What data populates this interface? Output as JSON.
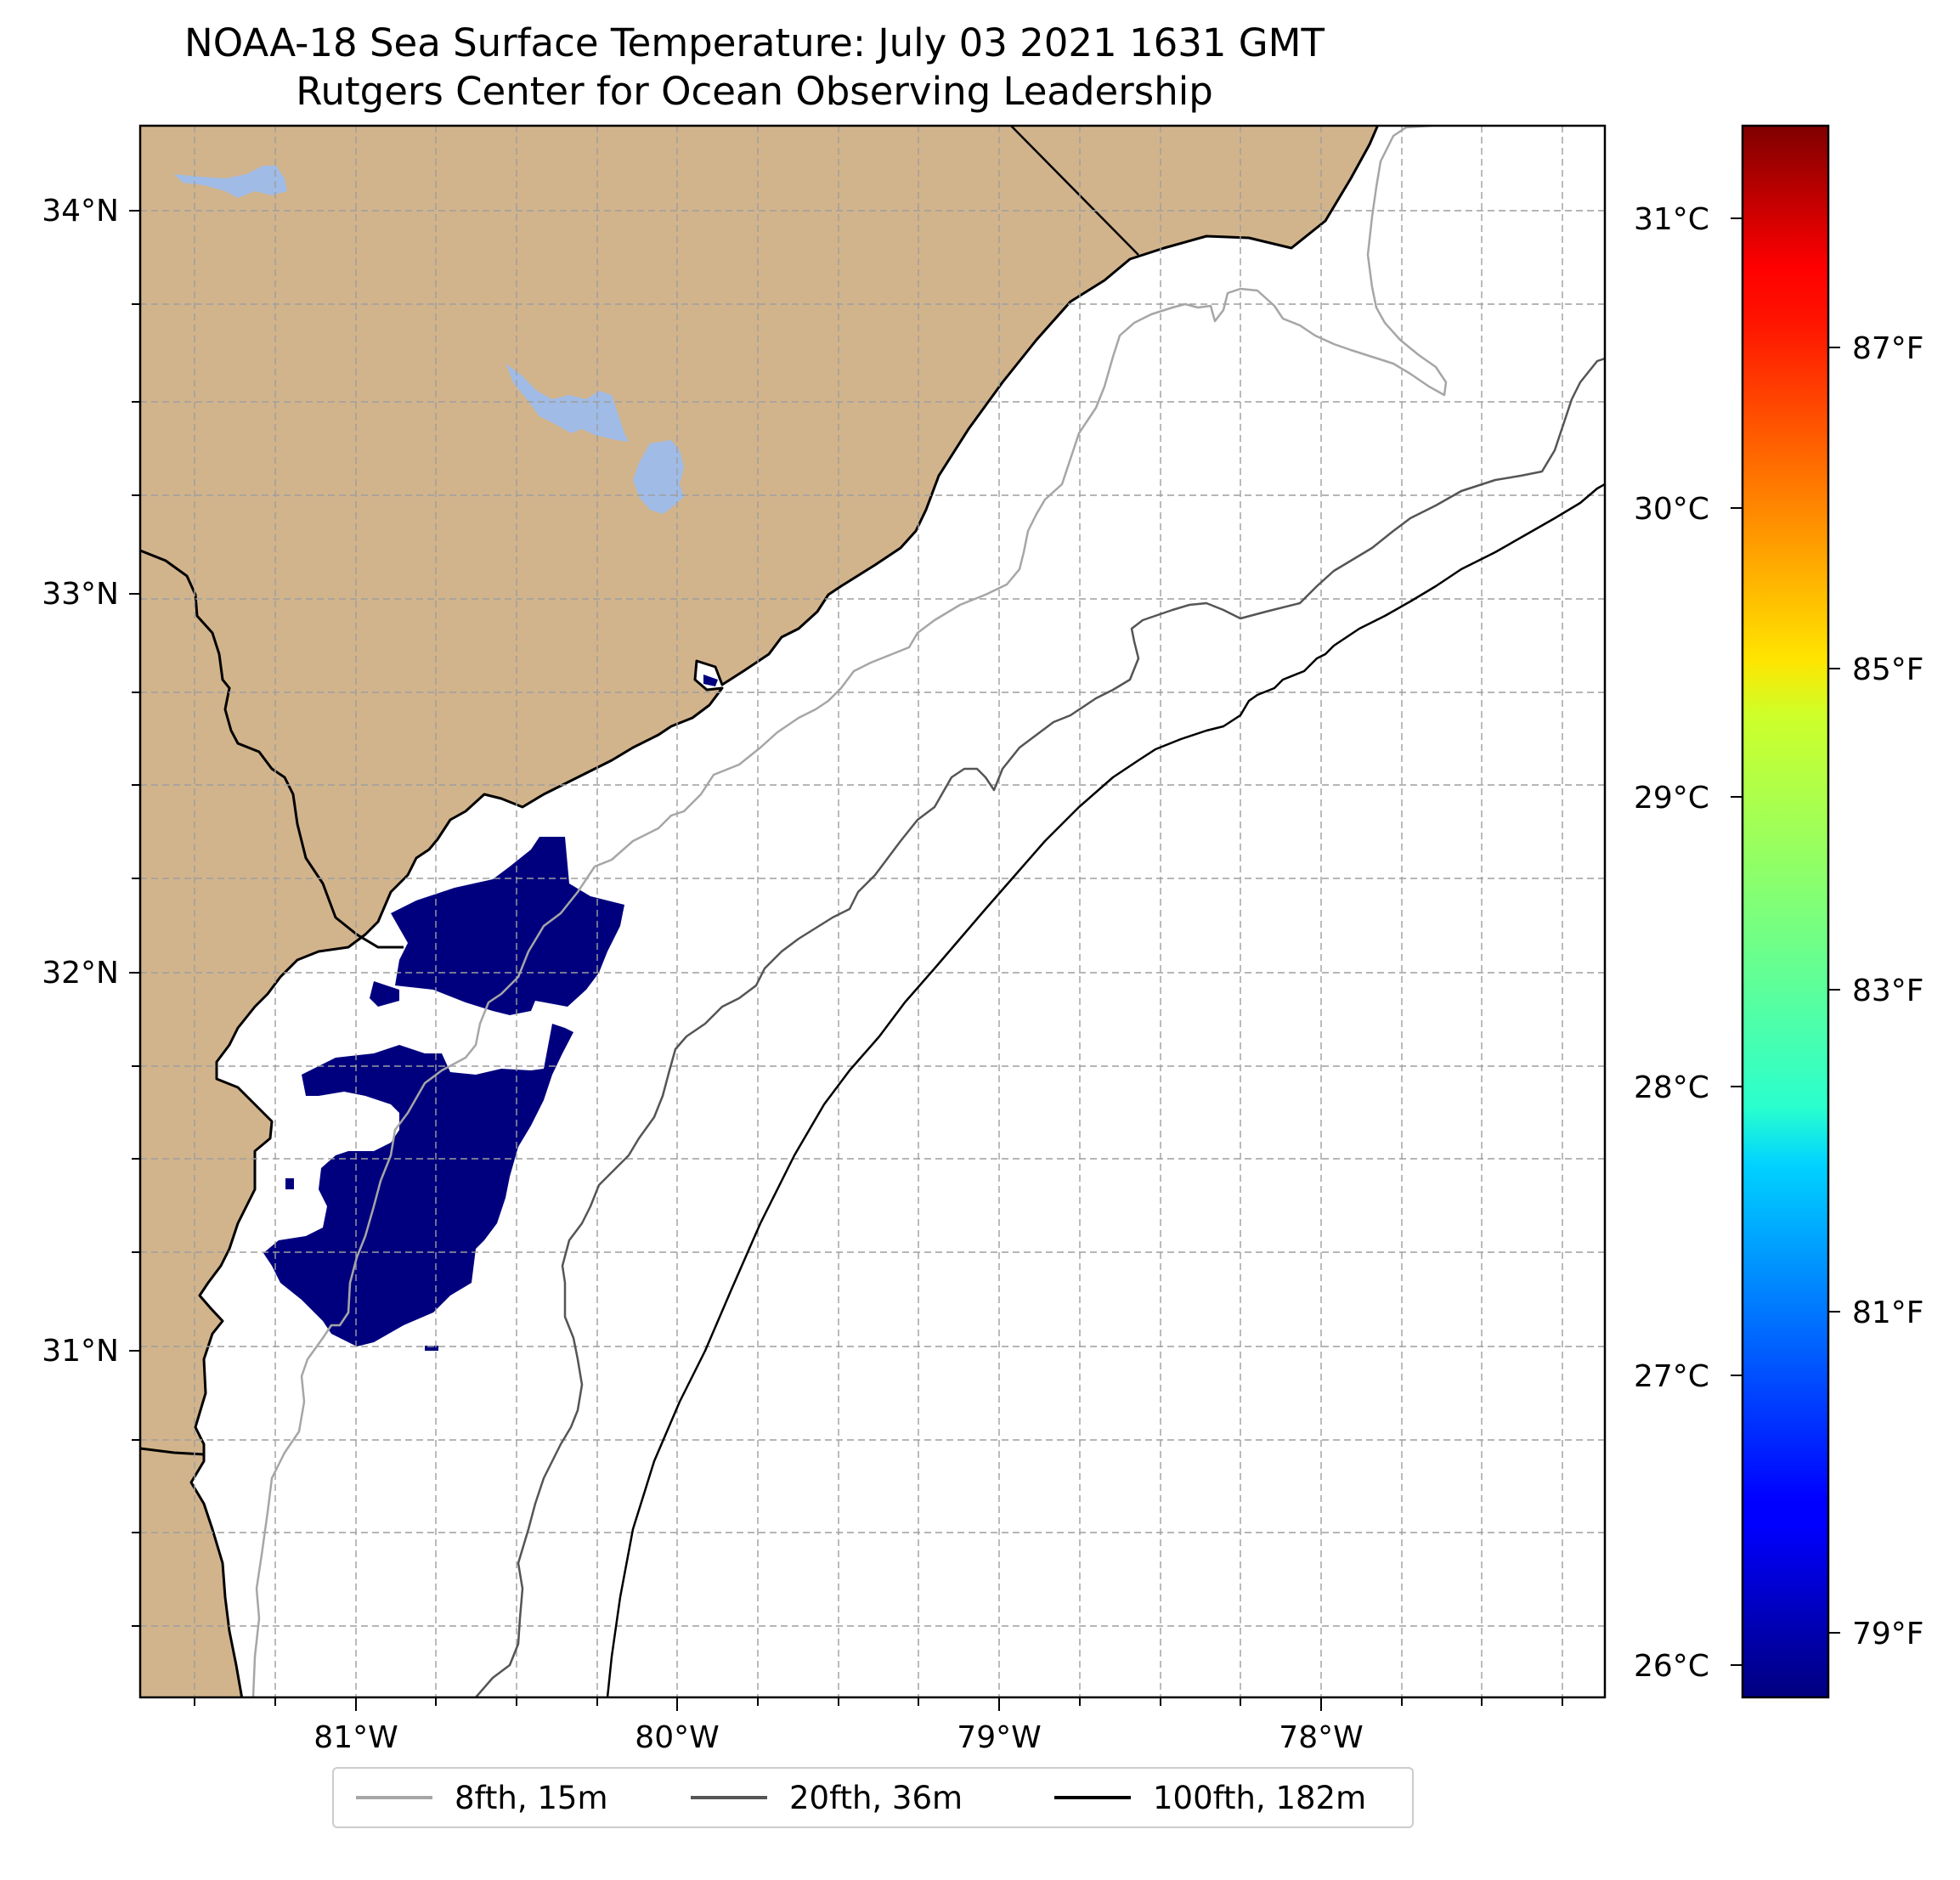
{
  "title": {
    "line1": "NOAA-18 Sea Surface Temperature: July 03 2021 1631 GMT",
    "line2": "Rutgers Center for Ocean Observing Leadership"
  },
  "map": {
    "lon_range": [
      -81.68,
      -77.12
    ],
    "lat_range": [
      30.08,
      34.22
    ],
    "lat_labels": [
      "34°N",
      "33°N",
      "32°N",
      "31°N"
    ],
    "lon_labels": [
      "81°W",
      "80°W",
      "79°W",
      "78°W"
    ],
    "gridlines": true,
    "land_color": "#d2b48c",
    "lake_color": "#9fbbe6",
    "sst_fill_color": "#00007f"
  },
  "colorbar": {
    "colormap": "jet",
    "celsius_labels": [
      "31°C",
      "30°C",
      "29°C",
      "28°C",
      "27°C",
      "26°C"
    ],
    "fahrenheit_labels": [
      "87°F",
      "85°F",
      "83°F",
      "81°F",
      "79°F"
    ]
  },
  "legend": {
    "items": [
      {
        "label": "8fth, 15m",
        "color": "#a6a6a6"
      },
      {
        "label": "20fth, 36m",
        "color": "#555555"
      },
      {
        "label": "100fth, 182m",
        "color": "#000000"
      }
    ]
  }
}
